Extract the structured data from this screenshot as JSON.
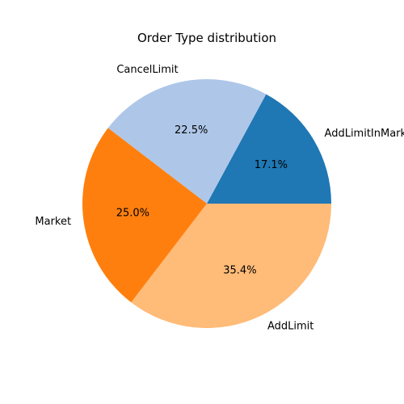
{
  "chart_data": {
    "type": "pie",
    "title": "Order Type distribution",
    "start_angle_deg": 0,
    "direction": "counterclockwise",
    "slices": [
      {
        "label": "AddLimitInMarket",
        "value": 17.1,
        "pct_label": "17.1%",
        "color": "#1f77b4"
      },
      {
        "label": "CancelLimit",
        "value": 22.5,
        "pct_label": "22.5%",
        "color": "#aec7e8"
      },
      {
        "label": "Market",
        "value": 25.0,
        "pct_label": "25.0%",
        "color": "#ff7f0e"
      },
      {
        "label": "AddLimit",
        "value": 35.4,
        "pct_label": "35.4%",
        "color": "#ffbb78"
      }
    ]
  }
}
